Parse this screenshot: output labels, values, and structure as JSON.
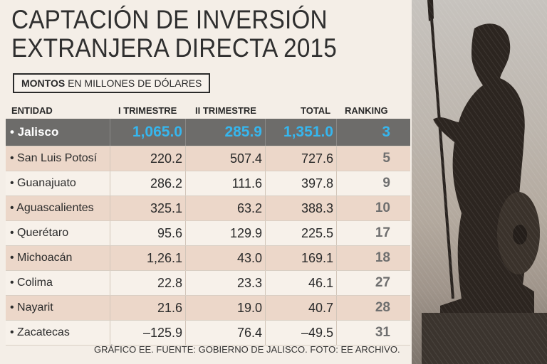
{
  "header": {
    "title_line1": "CAPTACIÓN DE INVERSIÓN",
    "title_line2": "EXTRANJERA DIRECTA 2015",
    "subtitle_bold": "MONTOS",
    "subtitle_rest": " EN MILLONES DE DÓLARES"
  },
  "colors": {
    "highlight_row": "#6d6c6a",
    "highlight_value": "#36b6ee",
    "alt_row": "#ecd7c9"
  },
  "chart_data": {
    "type": "table",
    "title": "CAPTACIÓN DE INVERSIÓN EXTRANJERA DIRECTA 2015",
    "subtitle": "MONTOS EN MILLONES DE DÓLARES",
    "columns": [
      "ENTIDAD",
      "I TRIMESTRE",
      "II TRIMESTRE",
      "TOTAL",
      "RANKING"
    ],
    "rows": [
      {
        "entidad": "• Jalisco",
        "q1": "1,065.0",
        "q2": "285.9",
        "total": "1,351.0",
        "ranking": "3",
        "highlight": true
      },
      {
        "entidad": "• San Luis Potosí",
        "q1": "220.2",
        "q2": "507.4",
        "total": "727.6",
        "ranking": "5"
      },
      {
        "entidad": "• Guanajuato",
        "q1": "286.2",
        "q2": "111.6",
        "total": "397.8",
        "ranking": "9"
      },
      {
        "entidad": "• Aguascalientes",
        "q1": "325.1",
        "q2": "63.2",
        "total": "388.3",
        "ranking": "10"
      },
      {
        "entidad": "• Querétaro",
        "q1": "95.6",
        "q2": "129.9",
        "total": "225.5",
        "ranking": "17"
      },
      {
        "entidad": "• Michoacán",
        "q1": "1,26.1",
        "q2": "43.0",
        "total": "169.1",
        "ranking": "18"
      },
      {
        "entidad": "• Colima",
        "q1": "22.8",
        "q2": "23.3",
        "total": "46.1",
        "ranking": "27"
      },
      {
        "entidad": "• Nayarit",
        "q1": "21.6",
        "q2": "19.0",
        "total": "40.7",
        "ranking": "28"
      },
      {
        "entidad": "• Zacatecas",
        "q1": "–125.9",
        "q2": "76.4",
        "total": "–49.5",
        "ranking": "31"
      }
    ]
  },
  "footer": {
    "source": "GRÁFICO EE. FUENTE: GOBIERNO DE JALISCO. FOTO: EE ARCHIVO."
  }
}
